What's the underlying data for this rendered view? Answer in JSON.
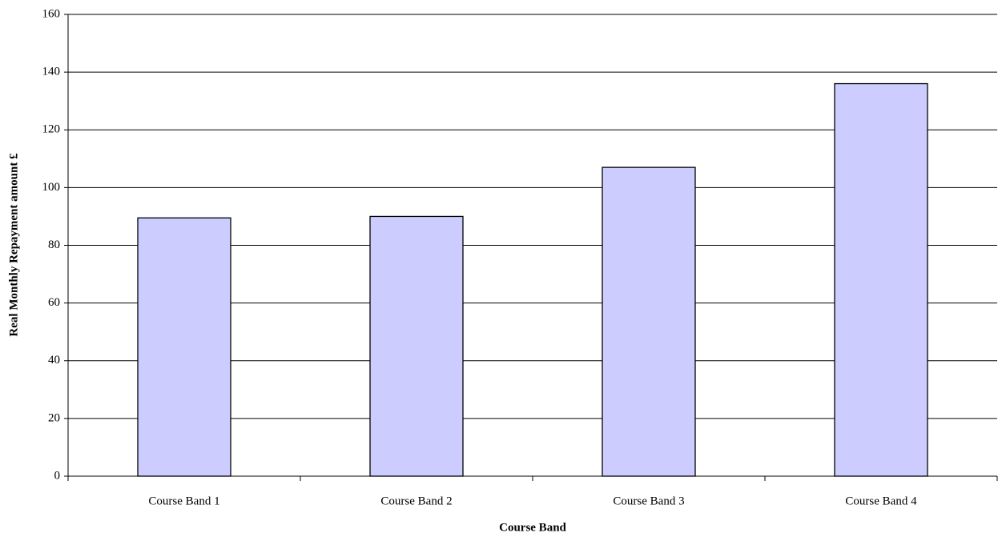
{
  "chart_data": {
    "type": "bar",
    "x_label": "Course Band",
    "y_label": "Real Monthly Repayment amount £",
    "categories": [
      "Course Band 1",
      "Course Band 2",
      "Course Band 3",
      "Course Band 4"
    ],
    "values": [
      89.5,
      90,
      107,
      136
    ],
    "color": "#ccccff",
    "ylim": [
      0,
      160
    ],
    "yticks": [
      0,
      20,
      40,
      60,
      80,
      100,
      120,
      140,
      160
    ],
    "grid": true
  }
}
